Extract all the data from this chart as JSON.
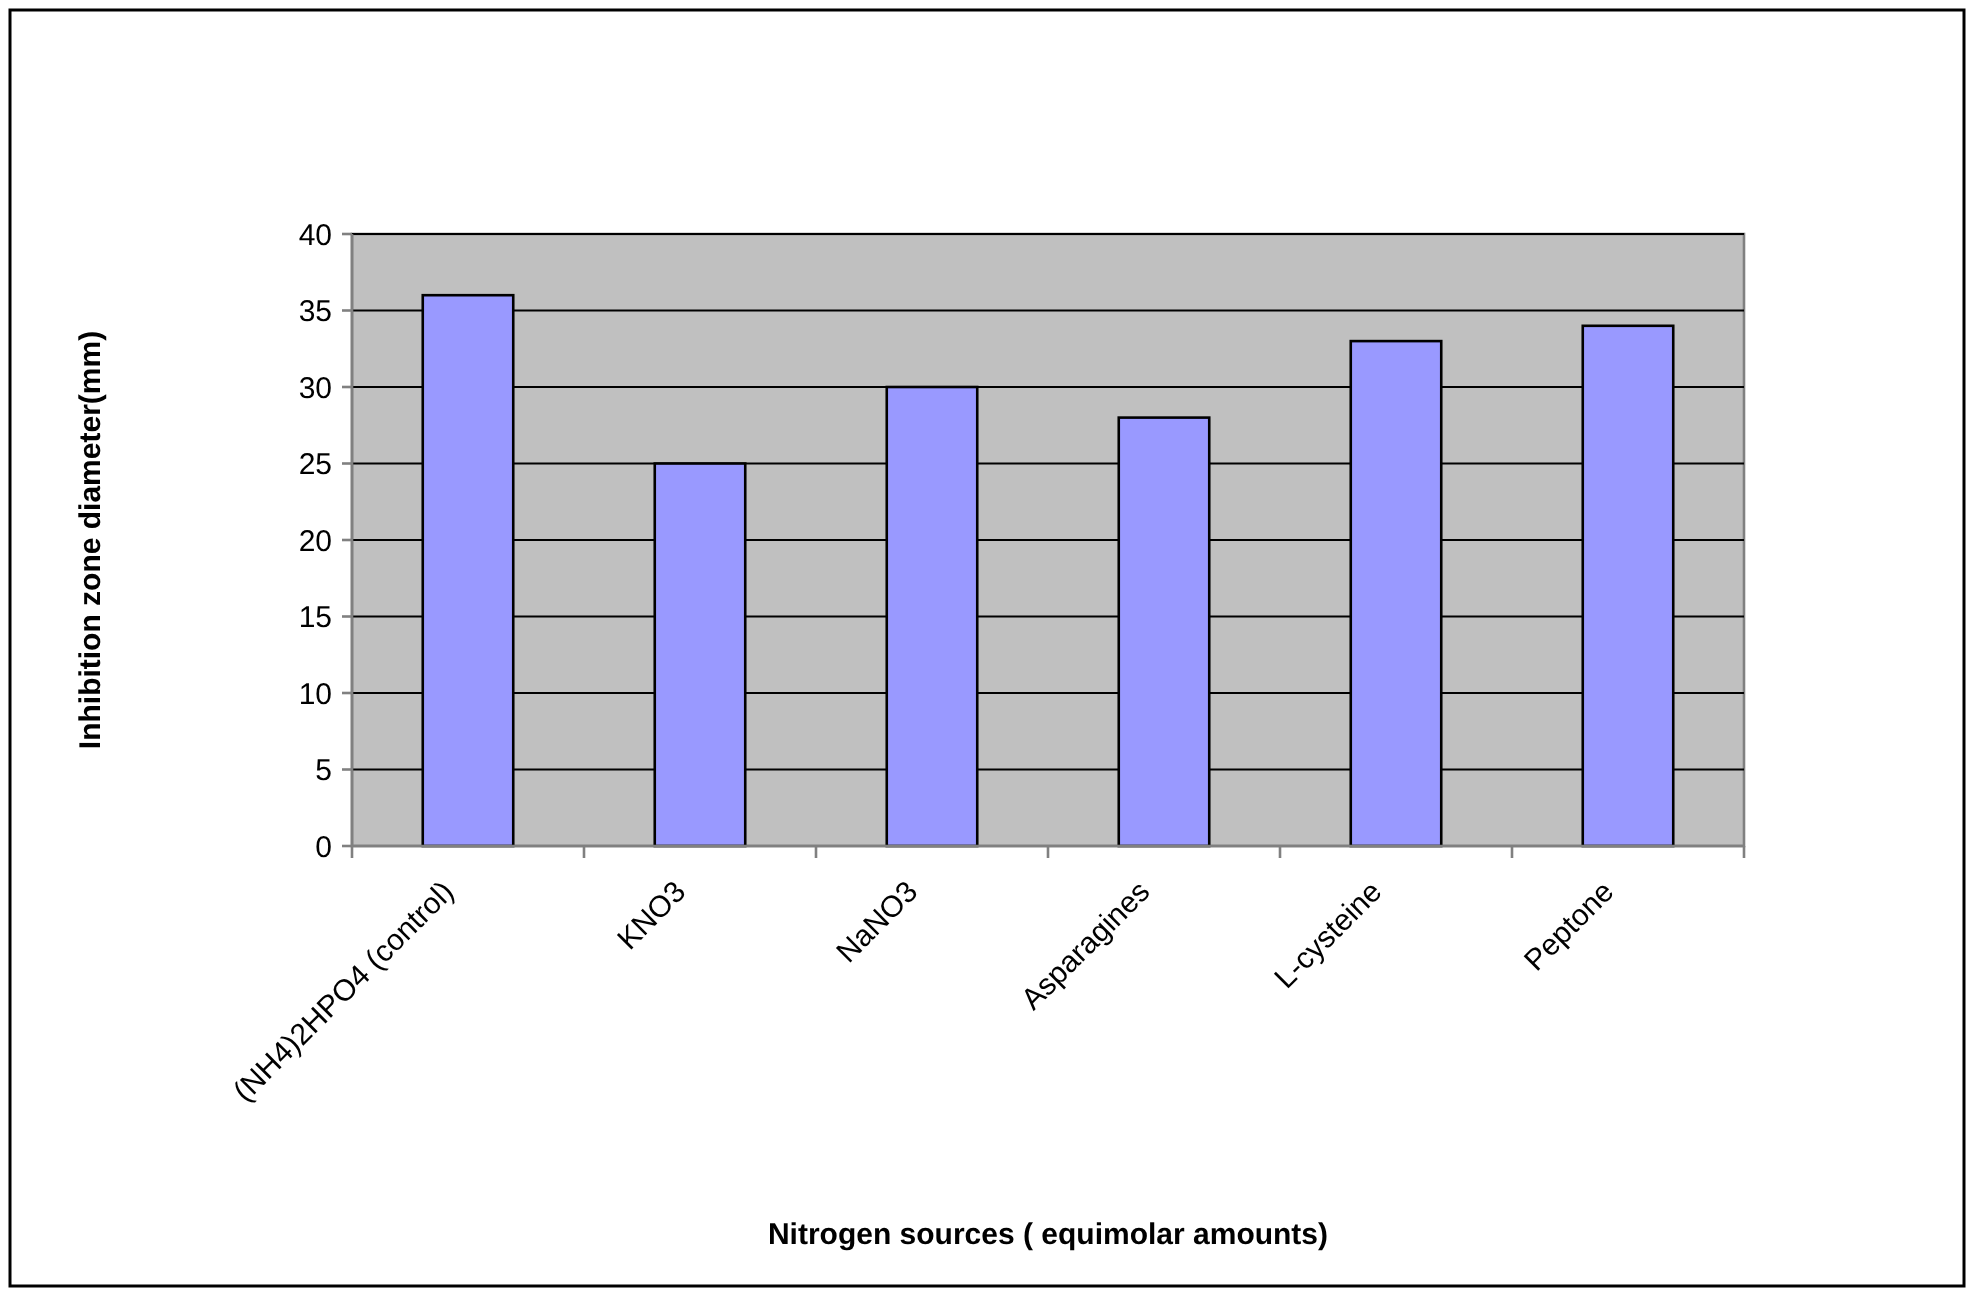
{
  "chart_data": {
    "type": "bar",
    "categories": [
      "(NH4)2HPO4 (control)",
      "KNO3",
      "NaNO3",
      "Asparagines",
      "L-cysteine",
      "Peptone"
    ],
    "values": [
      36,
      25,
      30,
      28,
      33,
      34
    ],
    "color": "#9999ff",
    "xlabel": "Nitrogen sources ( equimolar amounts)",
    "ylabel": "Inhibition zone diameter(mm)",
    "ylim": [
      0,
      40
    ],
    "yticks": [
      0,
      5,
      10,
      15,
      20,
      25,
      30,
      35,
      40
    ],
    "grid": "y"
  }
}
